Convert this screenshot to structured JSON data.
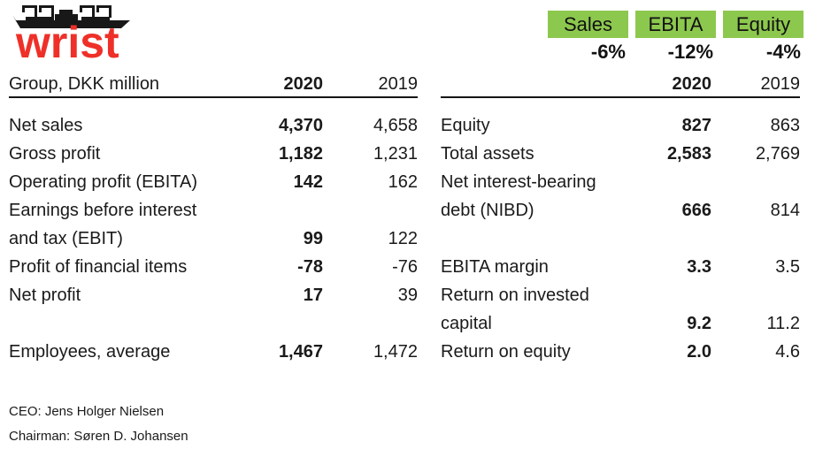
{
  "brand": {
    "name": "wrist"
  },
  "kpis": [
    {
      "label": "Sales",
      "change": "-6%"
    },
    {
      "label": "EBITA",
      "change": "-12%"
    },
    {
      "label": "Equity",
      "change": "-4%"
    }
  ],
  "tables": {
    "left": {
      "title": "Group, DKK million",
      "col_2020": "2020",
      "col_2019": "2019",
      "rows": [
        {
          "label": "Net sales",
          "y2020": "4,370",
          "y2019": "4,658"
        },
        {
          "label": "Gross profit",
          "y2020": "1,182",
          "y2019": "1,231"
        },
        {
          "label": "Operating profit (EBITA)",
          "y2020": "142",
          "y2019": "162"
        },
        {
          "label": "Earnings before interest",
          "y2020": "",
          "y2019": ""
        },
        {
          "label": "and tax (EBIT)",
          "y2020": "99",
          "y2019": "122"
        },
        {
          "label": "Profit of financial items",
          "y2020": "-78",
          "y2019": "-76"
        },
        {
          "label": "Net profit",
          "y2020": "17",
          "y2019": "39"
        },
        {
          "label": "",
          "y2020": "",
          "y2019": ""
        },
        {
          "label": "Employees, average",
          "y2020": "1,467",
          "y2019": "1,472"
        }
      ]
    },
    "right": {
      "title": "",
      "col_2020": "2020",
      "col_2019": "2019",
      "rows": [
        {
          "label": "Equity",
          "y2020": "827",
          "y2019": "863"
        },
        {
          "label": "Total assets",
          "y2020": "2,583",
          "y2019": "2,769"
        },
        {
          "label": "Net interest-bearing",
          "y2020": "",
          "y2019": ""
        },
        {
          "label": "debt (NIBD)",
          "y2020": "666",
          "y2019": "814"
        },
        {
          "label": "",
          "y2020": "",
          "y2019": ""
        },
        {
          "label": "EBITA margin",
          "y2020": "3.3",
          "y2019": "3.5"
        },
        {
          "label": "Return on invested",
          "y2020": "",
          "y2019": ""
        },
        {
          "label": "capital",
          "y2020": "9.2",
          "y2019": "11.2"
        },
        {
          "label": "Return on equity",
          "y2020": "2.0",
          "y2019": "4.6"
        }
      ]
    }
  },
  "footer": {
    "ceo": "CEO: Jens Holger Nielsen",
    "chairman": "Chairman: Søren D. Johansen"
  },
  "colors": {
    "kpi_green": "#8dc84e",
    "brand_red": "#ee3029"
  }
}
